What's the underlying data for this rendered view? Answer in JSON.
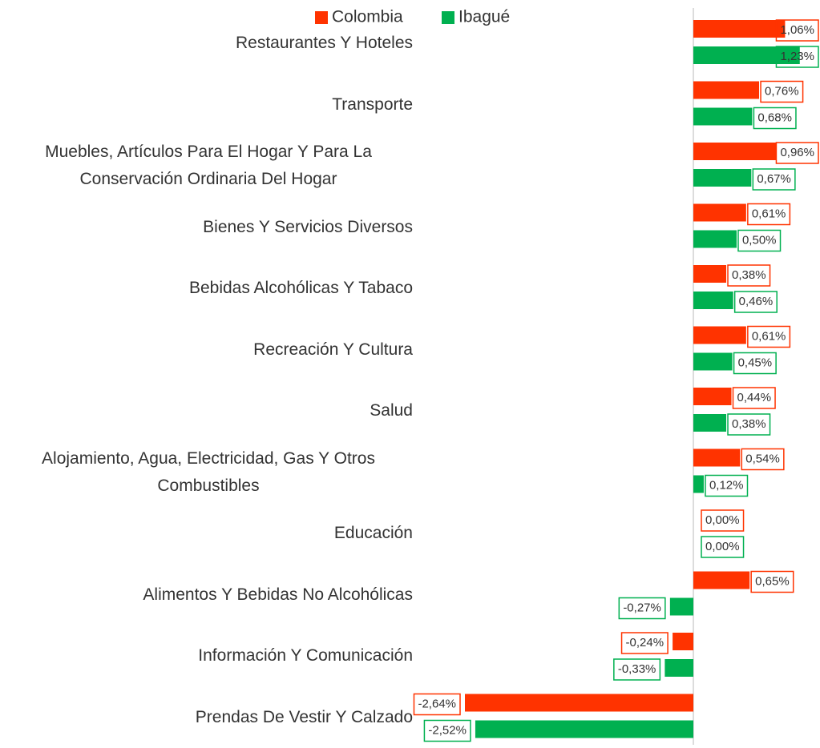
{
  "chart_data": {
    "type": "bar",
    "orientation": "horizontal",
    "categories": [
      "Restaurantes Y Hoteles",
      "Transporte",
      "Muebles, Artículos Para El Hogar Y Para La Conservación Ordinaria Del Hogar",
      "Bienes Y Servicios Diversos",
      "Bebidas Alcohólicas Y Tabaco",
      "Recreación Y Cultura",
      "Salud",
      "Alojamiento, Agua, Electricidad, Gas Y Otros Combustibles",
      "Educación",
      "Alimentos Y Bebidas No Alcohólicas",
      "Información Y Comunicación",
      "Prendas De Vestir Y Calzado"
    ],
    "series": [
      {
        "name": "Colombia",
        "color": "#ff3300",
        "values": [
          1.06,
          0.76,
          0.96,
          0.61,
          0.38,
          0.61,
          0.44,
          0.54,
          0.0,
          0.65,
          -0.24,
          -2.64
        ],
        "value_labels": [
          "1,06%",
          "0,76%",
          "0,96%",
          "0,61%",
          "0,38%",
          "0,61%",
          "0,44%",
          "0,54%",
          "0,00%",
          "0,65%",
          "-0,24%",
          "-2,64%"
        ]
      },
      {
        "name": "Ibagué",
        "color": "#00b050",
        "values": [
          1.23,
          0.68,
          0.67,
          0.5,
          0.46,
          0.45,
          0.38,
          0.12,
          0.0,
          -0.27,
          -0.33,
          -2.52
        ],
        "value_labels": [
          "1,23%",
          "0,68%",
          "0,67%",
          "0,50%",
          "0,46%",
          "0,45%",
          "0,38%",
          "0,12%",
          "0,00%",
          "-0,27%",
          "-0,33%",
          "-2,52%"
        ]
      }
    ],
    "legend": "top"
  }
}
